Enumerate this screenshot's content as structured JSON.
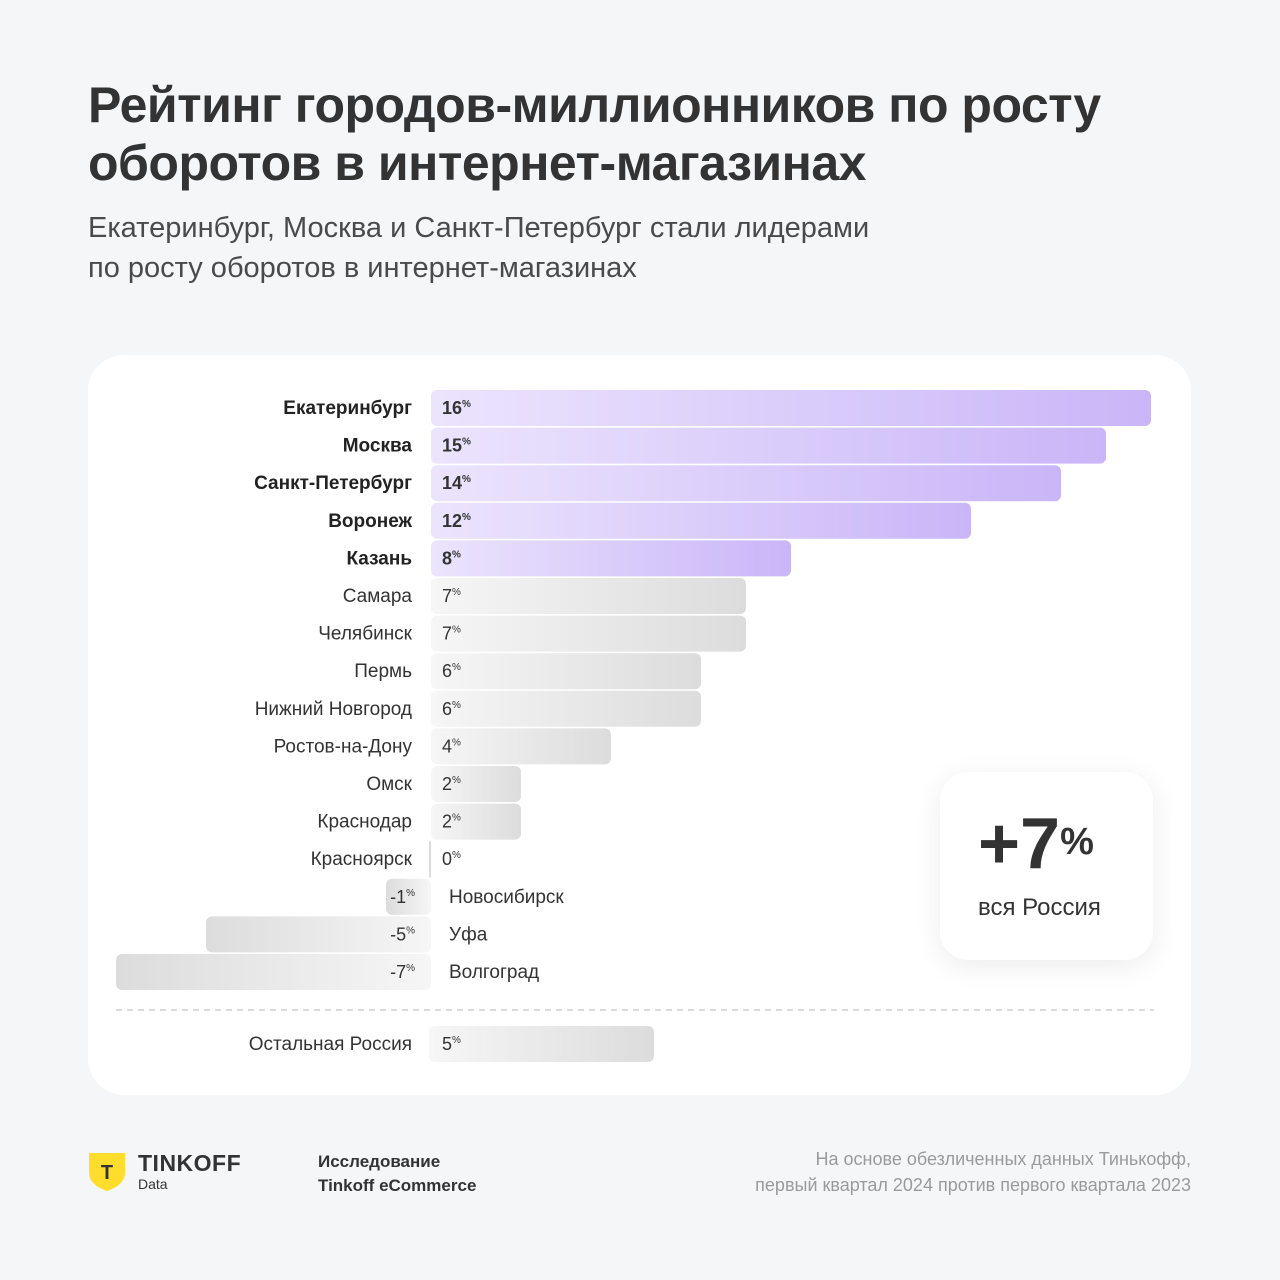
{
  "header": {
    "title": "Рейтинг городов-миллионников по росту оборотов в интернет-магазинах",
    "subtitle_line1": "Екатеринбург, Москва и Санкт-Петербург стали лидерами",
    "subtitle_line2": "по росту оборотов в интернет-магазинах"
  },
  "chart_data": {
    "type": "bar",
    "orientation": "horizontal",
    "unit": "%",
    "categories": [
      "Екатеринбург",
      "Москва",
      "Санкт-Петербург",
      "Воронеж",
      "Казань",
      "Самара",
      "Челябинск",
      "Пермь",
      "Нижний Новгород",
      "Ростов-на-Дону",
      "Омск",
      "Краснодар",
      "Красноярск",
      "Новосибирск",
      "Уфа",
      "Волгоград"
    ],
    "values": [
      16,
      15,
      14,
      12,
      8,
      7,
      7,
      6,
      6,
      4,
      2,
      2,
      0,
      -1,
      -5,
      -7
    ],
    "highlighted": [
      "Екатеринбург",
      "Москва",
      "Санкт-Петербург",
      "Воронеж",
      "Казань"
    ],
    "summary_row": {
      "label": "Остальная Россия",
      "value": 5
    },
    "colors": {
      "highlight_light": "#ece4fd",
      "highlight_dark": "#c9b6f8",
      "neutral_light": "#f6f6f6",
      "neutral_dark": "#dcdcdc"
    }
  },
  "total": {
    "value": "+7",
    "unit": "%",
    "label": "вся Россия"
  },
  "footer": {
    "brand_name": "TINKOFF",
    "brand_sub": "Data",
    "brand_letter": "T",
    "research_line1": "Исследование",
    "research_line2": "Tinkoff eCommerce",
    "source_line1": "На основе обезличенных данных Тинькофф,",
    "source_line2": "первый квартал 2024 против первого квартала 2023",
    "brand_color": "#ffdd2d"
  }
}
